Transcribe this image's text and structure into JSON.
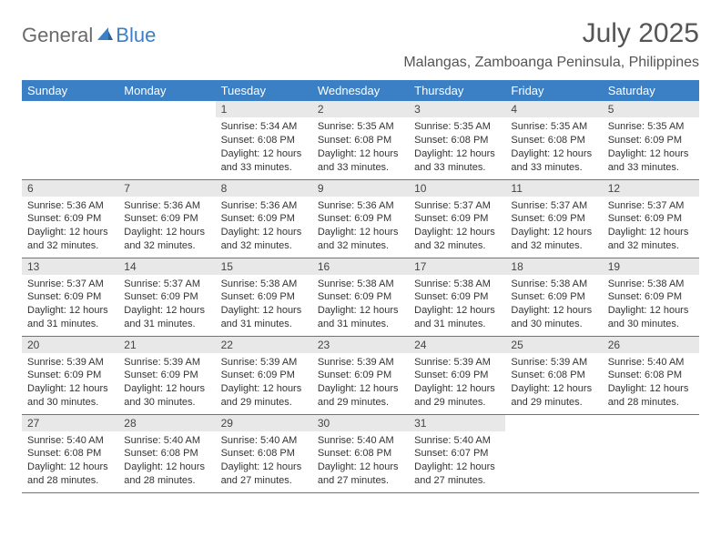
{
  "logo": {
    "text1": "General",
    "text2": "Blue"
  },
  "title": "July 2025",
  "location": "Malangas, Zamboanga Peninsula, Philippines",
  "colors": {
    "header_bg": "#3b7fc4",
    "header_text": "#ffffff",
    "daynum_bg": "#e8e8e8",
    "border": "#3b7fc4",
    "logo_gray": "#6a6a6a",
    "logo_blue": "#3b7fc4"
  },
  "weekdays": [
    "Sunday",
    "Monday",
    "Tuesday",
    "Wednesday",
    "Thursday",
    "Friday",
    "Saturday"
  ],
  "weeks": [
    [
      {
        "blank": true
      },
      {
        "blank": true
      },
      {
        "day": "1",
        "sunrise": "Sunrise: 5:34 AM",
        "sunset": "Sunset: 6:08 PM",
        "daylight": "Daylight: 12 hours and 33 minutes."
      },
      {
        "day": "2",
        "sunrise": "Sunrise: 5:35 AM",
        "sunset": "Sunset: 6:08 PM",
        "daylight": "Daylight: 12 hours and 33 minutes."
      },
      {
        "day": "3",
        "sunrise": "Sunrise: 5:35 AM",
        "sunset": "Sunset: 6:08 PM",
        "daylight": "Daylight: 12 hours and 33 minutes."
      },
      {
        "day": "4",
        "sunrise": "Sunrise: 5:35 AM",
        "sunset": "Sunset: 6:08 PM",
        "daylight": "Daylight: 12 hours and 33 minutes."
      },
      {
        "day": "5",
        "sunrise": "Sunrise: 5:35 AM",
        "sunset": "Sunset: 6:09 PM",
        "daylight": "Daylight: 12 hours and 33 minutes."
      }
    ],
    [
      {
        "day": "6",
        "sunrise": "Sunrise: 5:36 AM",
        "sunset": "Sunset: 6:09 PM",
        "daylight": "Daylight: 12 hours and 32 minutes."
      },
      {
        "day": "7",
        "sunrise": "Sunrise: 5:36 AM",
        "sunset": "Sunset: 6:09 PM",
        "daylight": "Daylight: 12 hours and 32 minutes."
      },
      {
        "day": "8",
        "sunrise": "Sunrise: 5:36 AM",
        "sunset": "Sunset: 6:09 PM",
        "daylight": "Daylight: 12 hours and 32 minutes."
      },
      {
        "day": "9",
        "sunrise": "Sunrise: 5:36 AM",
        "sunset": "Sunset: 6:09 PM",
        "daylight": "Daylight: 12 hours and 32 minutes."
      },
      {
        "day": "10",
        "sunrise": "Sunrise: 5:37 AM",
        "sunset": "Sunset: 6:09 PM",
        "daylight": "Daylight: 12 hours and 32 minutes."
      },
      {
        "day": "11",
        "sunrise": "Sunrise: 5:37 AM",
        "sunset": "Sunset: 6:09 PM",
        "daylight": "Daylight: 12 hours and 32 minutes."
      },
      {
        "day": "12",
        "sunrise": "Sunrise: 5:37 AM",
        "sunset": "Sunset: 6:09 PM",
        "daylight": "Daylight: 12 hours and 32 minutes."
      }
    ],
    [
      {
        "day": "13",
        "sunrise": "Sunrise: 5:37 AM",
        "sunset": "Sunset: 6:09 PM",
        "daylight": "Daylight: 12 hours and 31 minutes."
      },
      {
        "day": "14",
        "sunrise": "Sunrise: 5:37 AM",
        "sunset": "Sunset: 6:09 PM",
        "daylight": "Daylight: 12 hours and 31 minutes."
      },
      {
        "day": "15",
        "sunrise": "Sunrise: 5:38 AM",
        "sunset": "Sunset: 6:09 PM",
        "daylight": "Daylight: 12 hours and 31 minutes."
      },
      {
        "day": "16",
        "sunrise": "Sunrise: 5:38 AM",
        "sunset": "Sunset: 6:09 PM",
        "daylight": "Daylight: 12 hours and 31 minutes."
      },
      {
        "day": "17",
        "sunrise": "Sunrise: 5:38 AM",
        "sunset": "Sunset: 6:09 PM",
        "daylight": "Daylight: 12 hours and 31 minutes."
      },
      {
        "day": "18",
        "sunrise": "Sunrise: 5:38 AM",
        "sunset": "Sunset: 6:09 PM",
        "daylight": "Daylight: 12 hours and 30 minutes."
      },
      {
        "day": "19",
        "sunrise": "Sunrise: 5:38 AM",
        "sunset": "Sunset: 6:09 PM",
        "daylight": "Daylight: 12 hours and 30 minutes."
      }
    ],
    [
      {
        "day": "20",
        "sunrise": "Sunrise: 5:39 AM",
        "sunset": "Sunset: 6:09 PM",
        "daylight": "Daylight: 12 hours and 30 minutes."
      },
      {
        "day": "21",
        "sunrise": "Sunrise: 5:39 AM",
        "sunset": "Sunset: 6:09 PM",
        "daylight": "Daylight: 12 hours and 30 minutes."
      },
      {
        "day": "22",
        "sunrise": "Sunrise: 5:39 AM",
        "sunset": "Sunset: 6:09 PM",
        "daylight": "Daylight: 12 hours and 29 minutes."
      },
      {
        "day": "23",
        "sunrise": "Sunrise: 5:39 AM",
        "sunset": "Sunset: 6:09 PM",
        "daylight": "Daylight: 12 hours and 29 minutes."
      },
      {
        "day": "24",
        "sunrise": "Sunrise: 5:39 AM",
        "sunset": "Sunset: 6:09 PM",
        "daylight": "Daylight: 12 hours and 29 minutes."
      },
      {
        "day": "25",
        "sunrise": "Sunrise: 5:39 AM",
        "sunset": "Sunset: 6:08 PM",
        "daylight": "Daylight: 12 hours and 29 minutes."
      },
      {
        "day": "26",
        "sunrise": "Sunrise: 5:40 AM",
        "sunset": "Sunset: 6:08 PM",
        "daylight": "Daylight: 12 hours and 28 minutes."
      }
    ],
    [
      {
        "day": "27",
        "sunrise": "Sunrise: 5:40 AM",
        "sunset": "Sunset: 6:08 PM",
        "daylight": "Daylight: 12 hours and 28 minutes."
      },
      {
        "day": "28",
        "sunrise": "Sunrise: 5:40 AM",
        "sunset": "Sunset: 6:08 PM",
        "daylight": "Daylight: 12 hours and 28 minutes."
      },
      {
        "day": "29",
        "sunrise": "Sunrise: 5:40 AM",
        "sunset": "Sunset: 6:08 PM",
        "daylight": "Daylight: 12 hours and 27 minutes."
      },
      {
        "day": "30",
        "sunrise": "Sunrise: 5:40 AM",
        "sunset": "Sunset: 6:08 PM",
        "daylight": "Daylight: 12 hours and 27 minutes."
      },
      {
        "day": "31",
        "sunrise": "Sunrise: 5:40 AM",
        "sunset": "Sunset: 6:07 PM",
        "daylight": "Daylight: 12 hours and 27 minutes."
      },
      {
        "blank": true
      },
      {
        "blank": true
      }
    ]
  ]
}
